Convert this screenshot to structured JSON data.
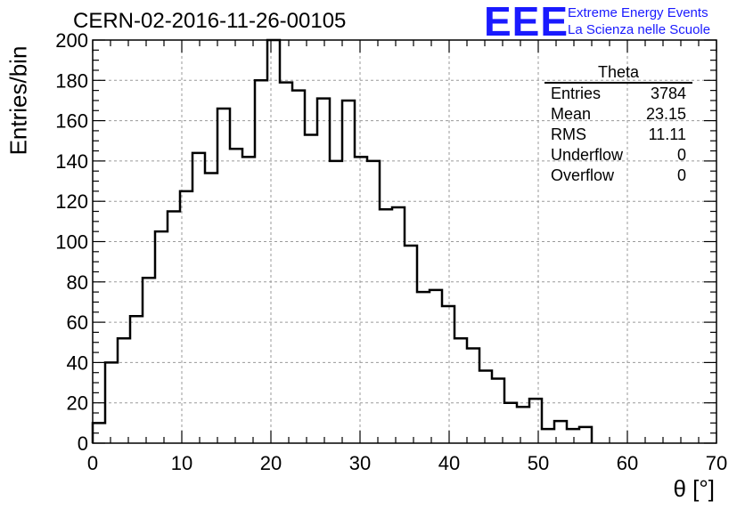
{
  "header": {
    "title": "CERN-02-2016-11-26-00105",
    "logo_mark": "EEE",
    "logo_line1": "Extreme Energy Events",
    "logo_line2": "La Scienza nelle Scuole"
  },
  "stats_box": {
    "title": "Theta",
    "rows": [
      {
        "label": "Entries",
        "value": "3784"
      },
      {
        "label": "Mean",
        "value": "23.15"
      },
      {
        "label": "RMS",
        "value": "11.11"
      },
      {
        "label": "Underflow",
        "value": "0"
      },
      {
        "label": "Overflow",
        "value": "0"
      }
    ]
  },
  "chart_data": {
    "type": "bar",
    "title": "CERN-02-2016-11-26-00105",
    "xlabel": "θ [°]",
    "ylabel": "Entries/bin",
    "xlim": [
      0,
      70
    ],
    "ylim": [
      0,
      200
    ],
    "xticks": [
      0,
      10,
      20,
      30,
      40,
      50,
      60,
      70
    ],
    "yticks": [
      0,
      20,
      40,
      60,
      80,
      100,
      120,
      140,
      160,
      180,
      200
    ],
    "grid": true,
    "bin_edges": [
      0,
      1.4,
      2.8,
      4.2,
      5.6,
      7,
      8.4,
      9.8,
      11.2,
      12.6,
      14,
      15.4,
      16.8,
      18.2,
      19.6,
      21,
      22.4,
      23.8,
      25.2,
      26.6,
      28,
      29.4,
      30.8,
      32.2,
      33.6,
      35,
      36.4,
      37.8,
      39.2,
      40.6,
      42,
      43.4,
      44.8,
      46.2,
      47.6,
      49,
      50.4,
      51.8,
      53.2,
      54.6,
      56
    ],
    "values": [
      10,
      40,
      52,
      63,
      82,
      105,
      115,
      125,
      144,
      134,
      166,
      146,
      142,
      180,
      200,
      179,
      175,
      153,
      171,
      140,
      170,
      142,
      140,
      116,
      117,
      98,
      75,
      76,
      68,
      52,
      47,
      36,
      32,
      20,
      18,
      22,
      7,
      11,
      7,
      8
    ]
  }
}
